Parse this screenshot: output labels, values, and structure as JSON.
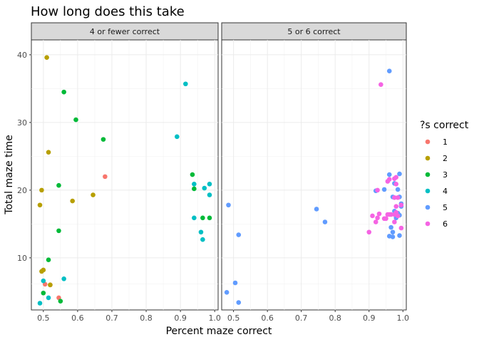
{
  "chart_data": {
    "type": "scatter",
    "title": "How long does this take",
    "xlabel": "Percent maze correct",
    "ylabel": "Total maze time",
    "xlim": [
      0.465,
      1.01
    ],
    "ylim": [
      2.3,
      42.2
    ],
    "x_ticks": [
      "0.5",
      "0.6",
      "0.7",
      "0.8",
      "0.9",
      "1.0"
    ],
    "y_ticks": [
      "10",
      "20",
      "30",
      "40"
    ],
    "x_tick_values": [
      0.5,
      0.6,
      0.7,
      0.8,
      0.9,
      1.0
    ],
    "y_tick_values": [
      10,
      20,
      30,
      40
    ],
    "grid": true,
    "legend": {
      "title": "?s correct",
      "placement": "right",
      "entries": [
        {
          "label": "1",
          "color": "#F8766D"
        },
        {
          "label": "2",
          "color": "#B79F00"
        },
        {
          "label": "3",
          "color": "#00BA38"
        },
        {
          "label": "4",
          "color": "#00BFC4"
        },
        {
          "label": "5",
          "color": "#619CFF"
        },
        {
          "label": "6",
          "color": "#F564E3"
        }
      ]
    },
    "panels": [
      {
        "label": "4 or fewer correct",
        "series": [
          {
            "name": "1",
            "color": "#F8766D",
            "points": [
              [
                0.68,
                22.0
              ],
              [
                0.52,
                6.0
              ],
              [
                0.545,
                4.1
              ],
              [
                0.505,
                6.1
              ]
            ]
          },
          {
            "name": "2",
            "color": "#B79F00",
            "points": [
              [
                0.51,
                39.6
              ],
              [
                0.515,
                25.6
              ],
              [
                0.495,
                20.0
              ],
              [
                0.49,
                17.8
              ],
              [
                0.585,
                18.4
              ],
              [
                0.645,
                19.3
              ],
              [
                0.495,
                8.0
              ],
              [
                0.5,
                8.2
              ],
              [
                0.52,
                6.0
              ]
            ]
          },
          {
            "name": "3",
            "color": "#00BA38",
            "points": [
              [
                0.56,
                34.5
              ],
              [
                0.595,
                30.4
              ],
              [
                0.675,
                27.5
              ],
              [
                0.545,
                20.7
              ],
              [
                0.545,
                14.0
              ],
              [
                0.515,
                9.7
              ],
              [
                0.5,
                4.8
              ],
              [
                0.55,
                3.6
              ],
              [
                0.935,
                22.3
              ],
              [
                0.94,
                20.2
              ],
              [
                0.965,
                15.9
              ],
              [
                0.985,
                15.9
              ]
            ]
          },
          {
            "name": "4",
            "color": "#00BFC4",
            "points": [
              [
                0.915,
                35.7
              ],
              [
                0.89,
                27.9
              ],
              [
                0.94,
                20.9
              ],
              [
                0.97,
                20.3
              ],
              [
                0.985,
                20.9
              ],
              [
                0.985,
                19.3
              ],
              [
                0.94,
                15.9
              ],
              [
                0.96,
                13.8
              ],
              [
                0.965,
                12.7
              ],
              [
                0.56,
                6.9
              ],
              [
                0.5,
                6.6
              ],
              [
                0.515,
                4.1
              ],
              [
                0.49,
                3.3
              ]
            ]
          }
        ]
      },
      {
        "label": "5 or 6 correct",
        "series": [
          {
            "name": "5",
            "color": "#619CFF",
            "points": [
              [
                0.96,
                37.6
              ],
              [
                0.485,
                17.8
              ],
              [
                0.745,
                17.2
              ],
              [
                0.77,
                15.3
              ],
              [
                0.515,
                13.4
              ],
              [
                0.505,
                6.3
              ],
              [
                0.48,
                4.9
              ],
              [
                0.515,
                3.4
              ],
              [
                0.92,
                19.9
              ],
              [
                0.945,
                20.1
              ],
              [
                0.96,
                22.3
              ],
              [
                0.975,
                21.0
              ],
              [
                0.99,
                22.4
              ],
              [
                0.97,
                19.0
              ],
              [
                0.985,
                20.1
              ],
              [
                0.99,
                19.0
              ],
              [
                0.995,
                17.6
              ],
              [
                0.975,
                16.9
              ],
              [
                0.99,
                16.3
              ],
              [
                0.98,
                15.9
              ],
              [
                0.965,
                14.5
              ],
              [
                0.97,
                13.8
              ],
              [
                0.96,
                13.2
              ],
              [
                0.97,
                13.1
              ],
              [
                0.99,
                13.3
              ],
              [
                0.985,
                16.6
              ],
              [
                0.995,
                18.0
              ]
            ]
          },
          {
            "name": "6",
            "color": "#F564E3",
            "points": [
              [
                0.935,
                35.6
              ],
              [
                0.925,
                20.0
              ],
              [
                0.955,
                21.3
              ],
              [
                0.96,
                21.6
              ],
              [
                0.975,
                21.7
              ],
              [
                0.98,
                21.9
              ],
              [
                0.98,
                20.9
              ],
              [
                0.975,
                18.9
              ],
              [
                0.985,
                18.9
              ],
              [
                0.995,
                17.8
              ],
              [
                0.98,
                17.6
              ],
              [
                0.98,
                16.7
              ],
              [
                0.975,
                16.4
              ],
              [
                0.965,
                16.4
              ],
              [
                0.96,
                16.4
              ],
              [
                0.955,
                16.4
              ],
              [
                0.95,
                15.8
              ],
              [
                0.945,
                15.8
              ],
              [
                0.975,
                15.3
              ],
              [
                0.93,
                16.5
              ],
              [
                0.925,
                15.9
              ],
              [
                0.91,
                16.2
              ],
              [
                0.92,
                15.3
              ],
              [
                0.9,
                13.8
              ],
              [
                0.995,
                14.4
              ],
              [
                0.985,
                16.2
              ]
            ]
          }
        ]
      }
    ]
  }
}
